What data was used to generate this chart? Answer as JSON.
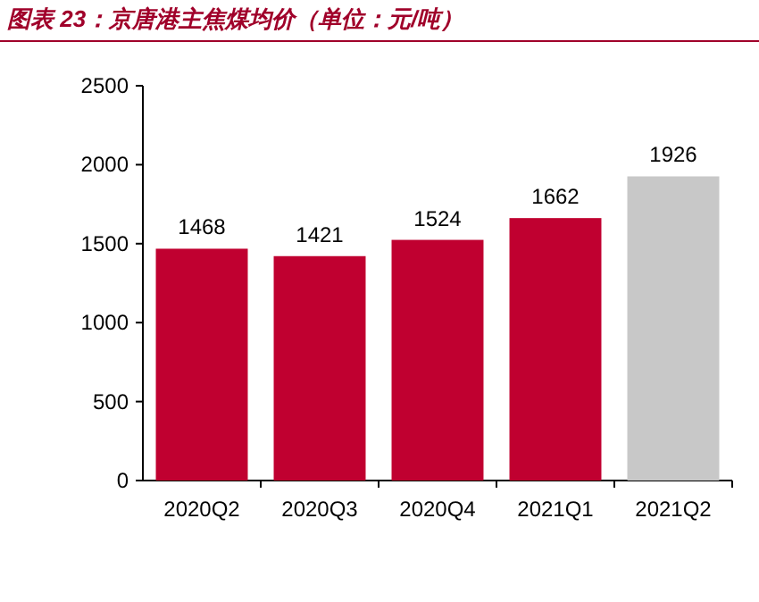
{
  "chart_data": {
    "type": "bar",
    "title": "图表 23：京唐港主焦煤均价（单位：元/吨）",
    "categories": [
      "2020Q2",
      "2020Q3",
      "2020Q4",
      "2021Q1",
      "2021Q2"
    ],
    "values": [
      1468,
      1421,
      1524,
      1662,
      1926
    ],
    "colors": [
      "#c00030",
      "#c00030",
      "#c00030",
      "#c00030",
      "#c8c8c8"
    ],
    "ylim": [
      0,
      2500
    ],
    "yticks": [
      0,
      500,
      1000,
      1500,
      2000,
      2500
    ],
    "data_labels": true
  }
}
